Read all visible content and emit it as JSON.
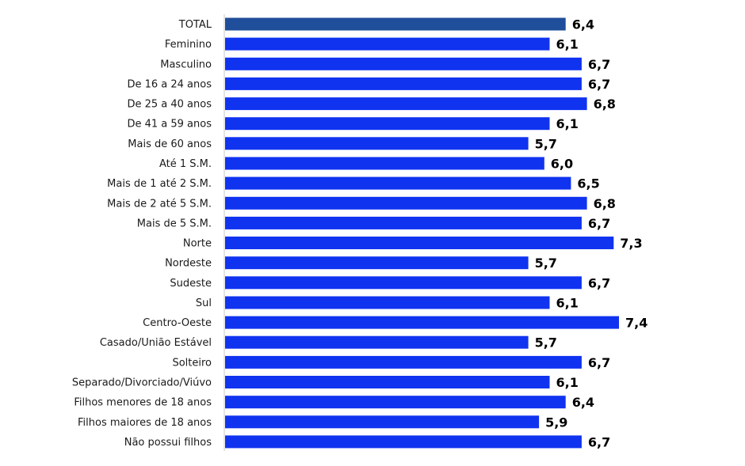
{
  "chart_data": {
    "type": "bar",
    "orientation": "horizontal",
    "categories": [
      "TOTAL",
      "Feminino",
      "Masculino",
      "De 16 a 24 anos",
      "De 25 a 40 anos",
      "De 41 a 59 anos",
      "Mais de 60 anos",
      "Até 1 S.M.",
      "Mais de 1 até 2 S.M.",
      "Mais de 2 até 5 S.M.",
      "Mais de 5 S.M.",
      "Norte",
      "Nordeste",
      "Sudeste",
      "Sul",
      "Centro-Oeste",
      "Casado/União Estável",
      "Solteiro",
      "Separado/Divorciado/Viúvo",
      "Filhos menores de 18 anos",
      "Filhos maiores de 18 anos",
      "Não possui filhos"
    ],
    "values": [
      6.4,
      6.1,
      6.7,
      6.7,
      6.8,
      6.1,
      5.7,
      6.0,
      6.5,
      6.8,
      6.7,
      7.3,
      5.7,
      6.7,
      6.1,
      7.4,
      5.7,
      6.7,
      6.1,
      6.4,
      5.9,
      6.7
    ],
    "value_labels": [
      "6,4",
      "6,1",
      "6,7",
      "6,7",
      "6,8",
      "6,1",
      "5,7",
      "6,0",
      "6,5",
      "6,8",
      "6,7",
      "7,3",
      "5,7",
      "6,7",
      "6,1",
      "7,4",
      "5,7",
      "6,7",
      "6,1",
      "6,4",
      "5,9",
      "6,7"
    ],
    "xlim": [
      0,
      7.4
    ],
    "grid": false,
    "legend": "none",
    "colors": {
      "highlight": "#1f4e9a",
      "bar": "#1033f0",
      "axis": "#c8c8c8"
    },
    "highlight_index": 0
  }
}
